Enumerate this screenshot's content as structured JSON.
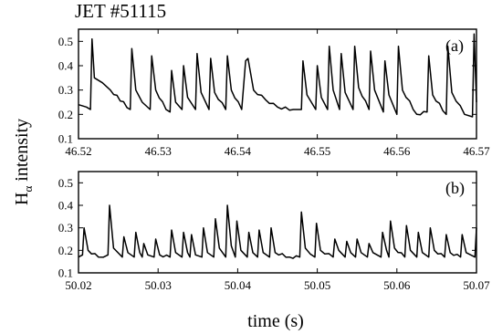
{
  "figure": {
    "title": "JET #51115",
    "ylabel_main": "H",
    "ylabel_sub": "α",
    "ylabel_rest": " intensity",
    "xlabel": "time (s)"
  },
  "chart_data": [
    {
      "type": "line",
      "panel_label": "(a)",
      "xlim": [
        46.52,
        46.57
      ],
      "ylim": [
        0.1,
        0.55
      ],
      "x_ticks": [
        "46.52",
        "46.53",
        "46.54",
        "46.55",
        "46.56",
        "46.57"
      ],
      "y_ticks": [
        "0.1",
        "0.2",
        "0.3",
        "0.4",
        "0.5"
      ],
      "baseline": 0.22,
      "series": [
        {
          "description": "Halpha signal with ELM spikes",
          "x": [
            46.52,
            46.521,
            46.5215,
            46.5217,
            46.522,
            46.523,
            46.524,
            46.5265,
            46.5267,
            46.5272,
            46.528,
            46.529,
            46.5292,
            46.5297,
            46.531,
            46.5315,
            46.5317,
            46.5322,
            46.533,
            46.5332,
            46.5337,
            46.5347,
            46.5349,
            46.5354,
            46.5364,
            46.5366,
            46.5371,
            46.5385,
            46.5387,
            46.5392,
            46.5405,
            46.541,
            46.5413,
            46.542,
            46.5435,
            46.545,
            46.547,
            46.548,
            46.5482,
            46.5487,
            46.5498,
            46.55,
            46.5505,
            46.5513,
            46.5515,
            46.552,
            46.5528,
            46.553,
            46.5535,
            46.5545,
            46.5547,
            46.5552,
            46.5565,
            46.5567,
            46.5572,
            46.5583,
            46.5585,
            46.559,
            46.56,
            46.5602,
            46.5607,
            46.5625,
            46.5638,
            46.564,
            46.5645,
            46.5662,
            46.5664,
            46.5669,
            46.5685,
            46.5695,
            46.5697,
            46.57
          ],
          "y": [
            0.24,
            0.23,
            0.22,
            0.51,
            0.35,
            0.33,
            0.3,
            0.22,
            0.47,
            0.3,
            0.25,
            0.22,
            0.44,
            0.3,
            0.22,
            0.21,
            0.38,
            0.25,
            0.22,
            0.4,
            0.27,
            0.22,
            0.45,
            0.29,
            0.22,
            0.43,
            0.29,
            0.22,
            0.44,
            0.3,
            0.22,
            0.42,
            0.43,
            0.3,
            0.26,
            0.23,
            0.22,
            0.22,
            0.42,
            0.28,
            0.22,
            0.4,
            0.27,
            0.22,
            0.48,
            0.3,
            0.22,
            0.45,
            0.29,
            0.22,
            0.48,
            0.31,
            0.22,
            0.46,
            0.3,
            0.21,
            0.42,
            0.28,
            0.2,
            0.48,
            0.3,
            0.2,
            0.21,
            0.44,
            0.28,
            0.2,
            0.48,
            0.29,
            0.2,
            0.19,
            0.53,
            0.25
          ]
        }
      ]
    },
    {
      "type": "line",
      "panel_label": "(b)",
      "xlim": [
        50.02,
        50.07
      ],
      "ylim": [
        0.1,
        0.55
      ],
      "x_ticks": [
        "50.02",
        "50.03",
        "50.04",
        "50.05",
        "50.06",
        "50.07"
      ],
      "y_ticks": [
        "0.1",
        "0.2",
        "0.3",
        "0.4",
        "0.5"
      ],
      "baseline": 0.17,
      "series": [
        {
          "description": "Halpha signal with small frequent ELMs",
          "x": [
            50.02,
            50.0205,
            50.0207,
            50.0212,
            50.0225,
            50.0237,
            50.0239,
            50.0244,
            50.0255,
            50.0257,
            50.0262,
            50.027,
            50.0272,
            50.0277,
            50.028,
            50.0282,
            50.0287,
            50.0295,
            50.0297,
            50.0302,
            50.0315,
            50.0317,
            50.0322,
            50.033,
            50.0332,
            50.0337,
            50.034,
            50.0342,
            50.0347,
            50.0355,
            50.0357,
            50.0362,
            50.037,
            50.0372,
            50.0377,
            50.0385,
            50.0387,
            50.0392,
            50.0397,
            50.0399,
            50.0404,
            50.0412,
            50.0414,
            50.0419,
            50.0425,
            50.0427,
            50.0432,
            50.044,
            50.0442,
            50.0447,
            50.0465,
            50.0478,
            50.048,
            50.0485,
            50.0497,
            50.0499,
            50.0504,
            50.052,
            50.0522,
            50.0527,
            50.0535,
            50.0537,
            50.0542,
            50.0548,
            50.055,
            50.0555,
            50.0563,
            50.0565,
            50.057,
            50.058,
            50.0582,
            50.0587,
            50.059,
            50.0592,
            50.0597,
            50.061,
            50.0612,
            50.0617,
            50.0625,
            50.0627,
            50.0632,
            50.064,
            50.0642,
            50.0647,
            50.066,
            50.0662,
            50.0667,
            50.068,
            50.0682,
            50.0687,
            50.0698,
            50.07
          ],
          "y": [
            0.17,
            0.18,
            0.3,
            0.2,
            0.17,
            0.18,
            0.4,
            0.21,
            0.17,
            0.26,
            0.19,
            0.17,
            0.28,
            0.19,
            0.17,
            0.23,
            0.18,
            0.17,
            0.25,
            0.18,
            0.17,
            0.29,
            0.19,
            0.17,
            0.28,
            0.19,
            0.17,
            0.27,
            0.18,
            0.17,
            0.3,
            0.19,
            0.17,
            0.34,
            0.21,
            0.17,
            0.4,
            0.22,
            0.17,
            0.33,
            0.2,
            0.17,
            0.28,
            0.19,
            0.17,
            0.29,
            0.19,
            0.17,
            0.3,
            0.19,
            0.17,
            0.17,
            0.37,
            0.21,
            0.17,
            0.32,
            0.2,
            0.17,
            0.25,
            0.2,
            0.17,
            0.24,
            0.19,
            0.17,
            0.25,
            0.19,
            0.17,
            0.23,
            0.19,
            0.17,
            0.28,
            0.2,
            0.17,
            0.33,
            0.21,
            0.17,
            0.31,
            0.2,
            0.17,
            0.28,
            0.19,
            0.17,
            0.3,
            0.2,
            0.17,
            0.27,
            0.19,
            0.17,
            0.27,
            0.19,
            0.17,
            0.3
          ]
        }
      ]
    }
  ]
}
